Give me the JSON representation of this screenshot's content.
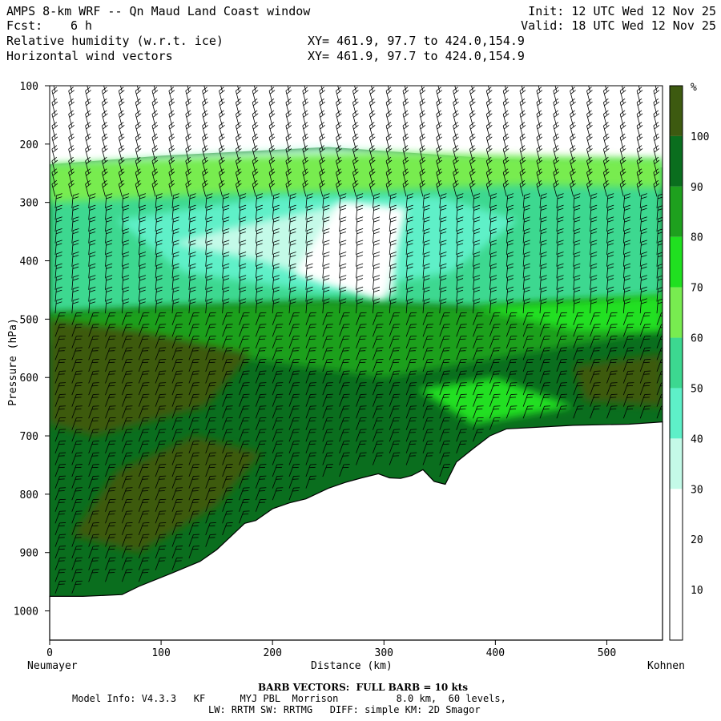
{
  "header": {
    "title": "AMPS 8-km WRF -- Qn Maud Land Coast window",
    "fcst_label": "Fcst:",
    "fcst_value": "6 h",
    "field1": "Relative humidity (w.r.t. ice)",
    "field2": "Horizontal wind vectors",
    "xy1": "XY= 461.9, 97.7 to 424.0,154.9",
    "xy2": "XY= 461.9, 97.7 to 424.0,154.9",
    "init": "Init: 12 UTC Wed 12 Nov 25",
    "valid": "Valid: 18 UTC Wed 12 Nov 25"
  },
  "footer": {
    "barb_note": "BARB VECTORS:  FULL BARB = 10 kts",
    "model_line1": "Model Info: V4.3.3   KF      MYJ PBL  Morrison          8.0 km,  60 levels,",
    "model_line2": "LW: RRTM SW: RRTMG   DIFF: simple KM: 2D Smagor"
  },
  "colors": {
    "c100": "#3d5a10",
    "c90": "#0a6e1e",
    "c80": "#1ea01e",
    "c70": "#20e020",
    "c60": "#78ec50",
    "c50": "#3cd890",
    "c40": "#5ef0c8",
    "c30": "#c4fae8",
    "c20": "#ffffff"
  },
  "chart_data": {
    "type": "cross-section",
    "field": "Relative humidity (w.r.t. ice)",
    "overlay": "Horizontal wind vectors",
    "xlabel": "Distance (km)",
    "ylabel": "Pressure (hPa)",
    "xlim": [
      0,
      550
    ],
    "ylim": [
      1050,
      100
    ],
    "x_ticks": [
      0,
      100,
      200,
      300,
      400,
      500
    ],
    "y_ticks": [
      100,
      200,
      300,
      400,
      500,
      600,
      700,
      800,
      900,
      1000
    ],
    "left_endpoint": "Neumayer",
    "right_endpoint": "Kohnen",
    "colorbar": {
      "unit": "%",
      "levels": [
        10,
        20,
        30,
        40,
        50,
        60,
        70,
        80,
        90,
        100
      ]
    },
    "terrain": {
      "x": [
        0,
        30,
        65,
        80,
        110,
        135,
        150,
        165,
        175,
        185,
        200,
        215,
        230,
        250,
        265,
        280,
        295,
        305,
        315,
        325,
        335,
        345,
        355,
        365,
        380,
        395,
        410,
        430,
        470,
        520,
        550
      ],
      "p": [
        975,
        975,
        972,
        958,
        935,
        915,
        895,
        868,
        850,
        845,
        825,
        815,
        808,
        790,
        780,
        772,
        765,
        772,
        773,
        768,
        758,
        778,
        783,
        745,
        722,
        700,
        688,
        686,
        682,
        680,
        676
      ]
    },
    "rh_regions": [
      {
        "level": 20,
        "x": [
          0,
          550
        ],
        "p": [
          100,
          215
        ]
      },
      {
        "level": 30,
        "x": [
          110,
          310
        ],
        "p": [
          285,
          475
        ]
      },
      {
        "level": 40,
        "x": [
          0,
          550
        ],
        "p": [
          230,
          510
        ]
      },
      {
        "level": 60,
        "x": [
          0,
          550
        ],
        "p": [
          220,
          320
        ]
      },
      {
        "level": 80,
        "x": [
          0,
          550
        ],
        "p": [
          480,
          700
        ]
      },
      {
        "level": 90,
        "x": [
          0,
          550
        ],
        "p": [
          500,
          980
        ]
      },
      {
        "level": 100,
        "x": [
          0,
          250
        ],
        "p": [
          500,
          900
        ]
      }
    ]
  }
}
